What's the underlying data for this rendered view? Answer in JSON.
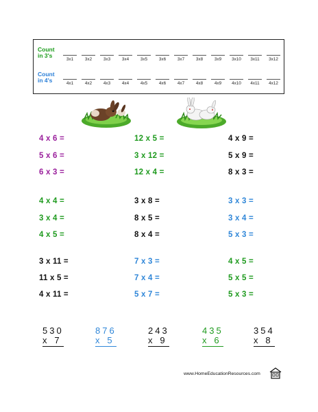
{
  "count_table": {
    "row1_label": [
      "Count",
      "in 3's"
    ],
    "row1_color": "#1a9b1a",
    "row1_cells": [
      "3x1",
      "3x2",
      "3x3",
      "3x4",
      "3x5",
      "3x6",
      "3x7",
      "3x8",
      "3x9",
      "3x10",
      "3x11",
      "3x12"
    ],
    "row2_label": [
      "Count",
      "in 4's"
    ],
    "row2_color": "#2a7fd8",
    "row2_cells": [
      "4x1",
      "4x2",
      "4x3",
      "4x4",
      "4x5",
      "4x6",
      "4x7",
      "4x8",
      "4x9",
      "4x10",
      "4x11",
      "4x12"
    ]
  },
  "colors": {
    "purple": "#9a1f9c",
    "green": "#1e9a1e",
    "black": "#111111",
    "blue": "#2f86d8"
  },
  "facts": [
    [
      "4 x 6 =",
      "12 x 5 =",
      "4 x 9 ="
    ],
    [
      "5 x 6 =",
      "3 x 12 =",
      "5 x 9 ="
    ],
    [
      "6 x 3 =",
      "12 x 4 =",
      "8 x 3 ="
    ],
    [
      "4 x 4 =",
      "3 x 8 =",
      "3 x 3 ="
    ],
    [
      "3 x 4 =",
      "8 x 5 =",
      "3 x 4 ="
    ],
    [
      "4 x 5 =",
      "8 x 4 =",
      "5 x 3 ="
    ],
    [
      "3 x 11 =",
      "7 x 3 =",
      "4 x 5 ="
    ],
    [
      "11 x 5 =",
      "7 x 4 =",
      "5 x 5 ="
    ],
    [
      "4 x 11 =",
      "5 x 7 =",
      "5 x 3 ="
    ]
  ],
  "vertical_problems": [
    {
      "top": "530",
      "bottom": "x   7"
    },
    {
      "top": "876",
      "bottom": "x   5"
    },
    {
      "top": "243",
      "bottom": "x   9"
    },
    {
      "top": "435",
      "bottom": "x   6"
    },
    {
      "top": "354",
      "bottom": "x   8"
    }
  ],
  "footer": {
    "url": "www.HomeEducationResources.com",
    "logo_icon": "house-icon"
  }
}
